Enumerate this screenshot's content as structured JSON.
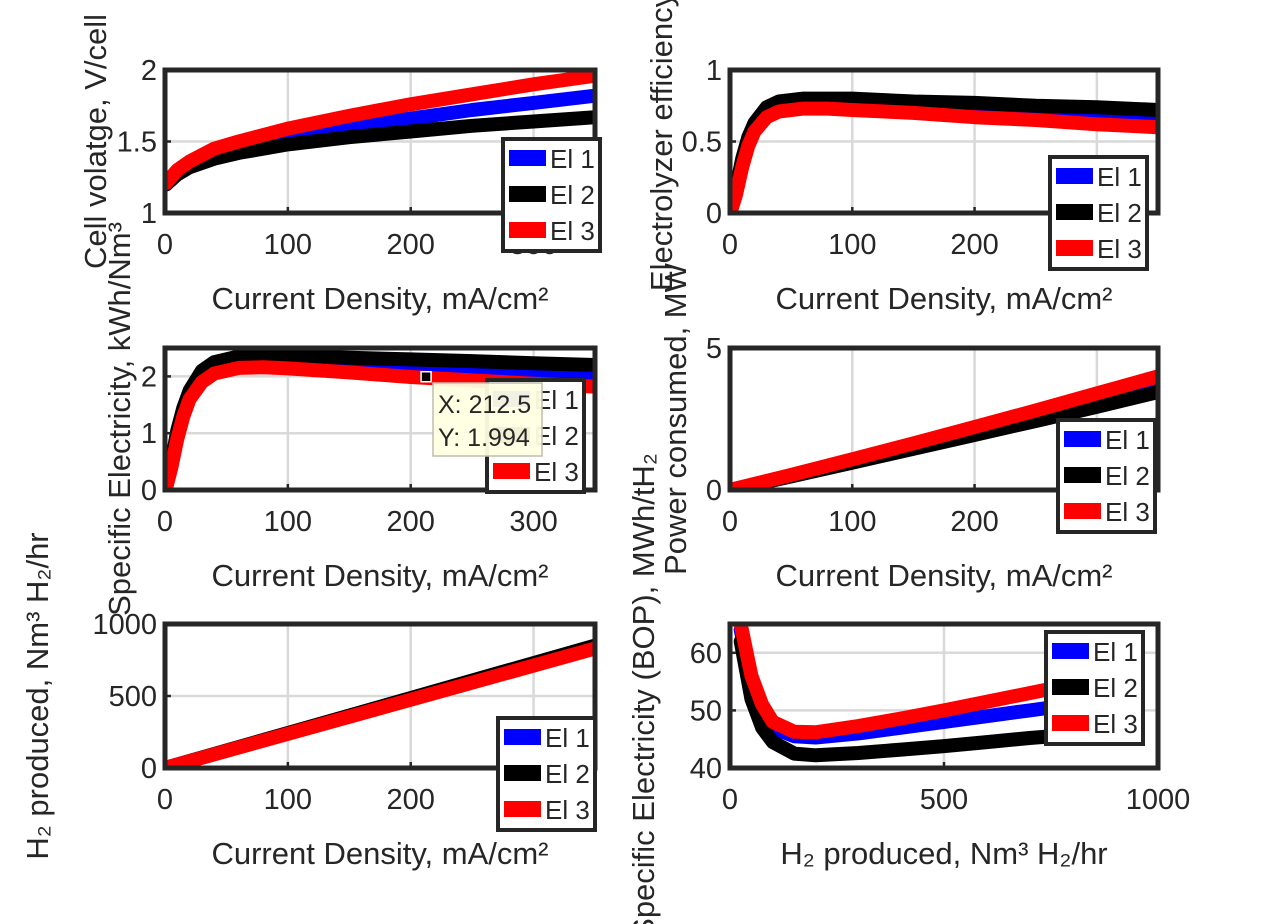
{
  "colors": {
    "series": [
      "#0000ff",
      "#000000",
      "#ff0000"
    ],
    "grid": "#d9d9d9",
    "axis": "#262626"
  },
  "chart_data": [
    {
      "type": "line",
      "ylabel": "Cell volatge, V/cell",
      "xlabel": "Current Density, mA/cm²",
      "xlim": [
        0,
        350
      ],
      "ylim": [
        1,
        2
      ],
      "xticks": [
        0,
        100,
        200,
        300
      ],
      "yticks": [
        1,
        1.5,
        2
      ],
      "xtick_labels": [
        "0",
        "100",
        "200",
        "300"
      ],
      "ytick_labels": [
        "1",
        "1.5",
        "2"
      ],
      "grid": true,
      "legend_position": "bottom-right",
      "series": [
        {
          "name": "El 1",
          "x": [
            1,
            5,
            10,
            20,
            40,
            60,
            100,
            150,
            200,
            250,
            300,
            350
          ],
          "y": [
            1.2,
            1.24,
            1.28,
            1.33,
            1.41,
            1.46,
            1.53,
            1.6,
            1.66,
            1.72,
            1.77,
            1.82
          ]
        },
        {
          "name": "El 2",
          "x": [
            1,
            5,
            10,
            20,
            40,
            60,
            100,
            150,
            200,
            250,
            300,
            350
          ],
          "y": [
            1.2,
            1.23,
            1.27,
            1.32,
            1.38,
            1.42,
            1.48,
            1.53,
            1.57,
            1.61,
            1.64,
            1.67
          ]
        },
        {
          "name": "El 3",
          "x": [
            1,
            5,
            10,
            20,
            40,
            60,
            100,
            150,
            200,
            250,
            300,
            350
          ],
          "y": [
            1.21,
            1.25,
            1.3,
            1.36,
            1.45,
            1.5,
            1.59,
            1.68,
            1.76,
            1.83,
            1.9,
            1.96
          ]
        }
      ]
    },
    {
      "type": "line",
      "ylabel": "Electrolyzer efficiency",
      "xlabel": "Current Density, mA/cm²",
      "xlim": [
        0,
        350
      ],
      "ylim": [
        0,
        1
      ],
      "xticks": [
        0,
        100,
        200,
        300
      ],
      "yticks": [
        0,
        0.5,
        1
      ],
      "xtick_labels": [
        "0",
        "100",
        "200",
        "300"
      ],
      "ytick_labels": [
        "0",
        "0.5",
        "1"
      ],
      "grid": true,
      "legend_position": "bottom-right",
      "series": [
        {
          "name": "El 1",
          "x": [
            1,
            5,
            10,
            15,
            20,
            30,
            40,
            60,
            80,
            100,
            150,
            200,
            250,
            300,
            350
          ],
          "y": [
            0.02,
            0.15,
            0.35,
            0.5,
            0.6,
            0.7,
            0.75,
            0.78,
            0.78,
            0.77,
            0.74,
            0.72,
            0.7,
            0.67,
            0.65
          ]
        },
        {
          "name": "El 2",
          "x": [
            1,
            5,
            10,
            15,
            20,
            30,
            40,
            60,
            80,
            100,
            150,
            200,
            250,
            300,
            350
          ],
          "y": [
            0.02,
            0.17,
            0.38,
            0.53,
            0.63,
            0.74,
            0.78,
            0.8,
            0.8,
            0.8,
            0.78,
            0.77,
            0.75,
            0.74,
            0.72
          ]
        },
        {
          "name": "El 3",
          "x": [
            1,
            5,
            10,
            15,
            20,
            30,
            40,
            60,
            80,
            100,
            150,
            200,
            250,
            300,
            350
          ],
          "y": [
            0.02,
            0.13,
            0.32,
            0.47,
            0.57,
            0.67,
            0.71,
            0.73,
            0.73,
            0.72,
            0.7,
            0.67,
            0.65,
            0.62,
            0.6
          ]
        }
      ]
    },
    {
      "type": "line",
      "ylabel": "Specific Electricity, kWh/Nm³",
      "xlabel": "Current Density, mA/cm²",
      "xlim": [
        0,
        350
      ],
      "ylim": [
        0,
        2.5
      ],
      "xticks": [
        0,
        100,
        200,
        300
      ],
      "yticks": [
        0,
        1,
        2
      ],
      "xtick_labels": [
        "0",
        "100",
        "200",
        "300"
      ],
      "ytick_labels": [
        "0",
        "1",
        "2"
      ],
      "grid": true,
      "legend_position": "bottom-right",
      "datatip": {
        "x_label": "X: 212.5",
        "y_label": "Y: 1.994",
        "x": 212.5,
        "y": 1.994
      },
      "series": [
        {
          "name": "El 1",
          "x": [
            1,
            5,
            10,
            15,
            20,
            30,
            40,
            60,
            80,
            100,
            150,
            200,
            250,
            300,
            350
          ],
          "y": [
            0.05,
            0.4,
            0.95,
            1.35,
            1.65,
            1.95,
            2.1,
            2.2,
            2.22,
            2.2,
            2.15,
            2.1,
            2.05,
            2.0,
            1.96
          ]
        },
        {
          "name": "El 2",
          "x": [
            1,
            5,
            10,
            15,
            20,
            30,
            40,
            60,
            80,
            100,
            150,
            200,
            250,
            300,
            350
          ],
          "y": [
            0.05,
            0.45,
            1.05,
            1.45,
            1.75,
            2.1,
            2.25,
            2.35,
            2.36,
            2.36,
            2.33,
            2.3,
            2.27,
            2.23,
            2.2
          ]
        },
        {
          "name": "El 3",
          "x": [
            1,
            5,
            10,
            15,
            20,
            30,
            40,
            60,
            80,
            100,
            150,
            200,
            250,
            300,
            350
          ],
          "y": [
            0.05,
            0.38,
            0.9,
            1.3,
            1.6,
            1.9,
            2.05,
            2.15,
            2.16,
            2.14,
            2.07,
            1.99,
            1.93,
            1.87,
            1.82
          ]
        }
      ]
    },
    {
      "type": "line",
      "ylabel": "Power consumed, MW",
      "xlabel": "Current Density, mA/cm²",
      "xlim": [
        0,
        350
      ],
      "ylim": [
        0,
        5
      ],
      "xticks": [
        0,
        100,
        200,
        300
      ],
      "yticks": [
        0,
        5
      ],
      "xtick_labels": [
        "0",
        "100",
        "200",
        "300"
      ],
      "ytick_labels": [
        "0",
        "5"
      ],
      "grid": true,
      "legend_position": "bottom-right",
      "series": [
        {
          "name": "El 1",
          "x": [
            0,
            50,
            100,
            150,
            200,
            250,
            300,
            350
          ],
          "y": [
            0,
            0.51,
            1.03,
            1.55,
            2.08,
            2.62,
            3.16,
            3.7
          ]
        },
        {
          "name": "El 2",
          "x": [
            0,
            50,
            100,
            150,
            200,
            250,
            300,
            350
          ],
          "y": [
            0,
            0.48,
            0.96,
            1.45,
            1.94,
            2.43,
            2.93,
            3.45
          ]
        },
        {
          "name": "El 3",
          "x": [
            0,
            50,
            100,
            150,
            200,
            250,
            300,
            350
          ],
          "y": [
            0,
            0.53,
            1.08,
            1.64,
            2.22,
            2.8,
            3.4,
            4.0
          ]
        }
      ]
    },
    {
      "type": "line",
      "ylabel": "H₂ produced, Nm³ H₂/hr",
      "xlabel": "Current Density, mA/cm²",
      "xlim": [
        0,
        350
      ],
      "ylim": [
        0,
        1000
      ],
      "xticks": [
        0,
        100,
        200,
        300
      ],
      "yticks": [
        0,
        500,
        1000
      ],
      "xtick_labels": [
        "0",
        "100",
        "200",
        "300"
      ],
      "ytick_labels": [
        "0",
        "500",
        "1000"
      ],
      "grid": true,
      "legend_position": "bottom-right",
      "series": [
        {
          "name": "El 1",
          "x": [
            0,
            350
          ],
          "y": [
            0,
            840
          ]
        },
        {
          "name": "El 2",
          "x": [
            0,
            350
          ],
          "y": [
            0,
            850
          ]
        },
        {
          "name": "El 3",
          "x": [
            0,
            350
          ],
          "y": [
            0,
            830
          ]
        }
      ]
    },
    {
      "type": "line",
      "ylabel": "Specific Electricity (BOP), MWh/tH₂",
      "xlabel": "H₂ produced, Nm³ H₂/hr",
      "xlim": [
        0,
        1000
      ],
      "ylim": [
        40,
        65
      ],
      "xticks": [
        0,
        500,
        1000
      ],
      "yticks": [
        40,
        50,
        60
      ],
      "xtick_labels": [
        "0",
        "500",
        "1000"
      ],
      "ytick_labels": [
        "40",
        "50",
        "60"
      ],
      "grid": true,
      "legend_position": "top-right",
      "series": [
        {
          "name": "El 1",
          "x": [
            25,
            50,
            75,
            100,
            150,
            200,
            300,
            400,
            500,
            600,
            700,
            800
          ],
          "y": [
            64,
            55,
            50,
            47,
            45.5,
            45.3,
            46,
            47,
            48,
            49,
            50,
            51
          ]
        },
        {
          "name": "El 2",
          "x": [
            25,
            50,
            75,
            100,
            150,
            200,
            300,
            400,
            500,
            600,
            700,
            800
          ],
          "y": [
            62,
            52,
            47,
            44.5,
            42.5,
            42.2,
            42.6,
            43.2,
            43.8,
            44.5,
            45.2,
            45.8
          ]
        },
        {
          "name": "El 3",
          "x": [
            25,
            50,
            75,
            100,
            150,
            200,
            300,
            400,
            500,
            600,
            700,
            800
          ],
          "y": [
            65,
            56,
            51,
            48,
            46.3,
            46.2,
            47.3,
            48.6,
            50,
            51.5,
            53,
            54.5
          ]
        }
      ]
    }
  ]
}
